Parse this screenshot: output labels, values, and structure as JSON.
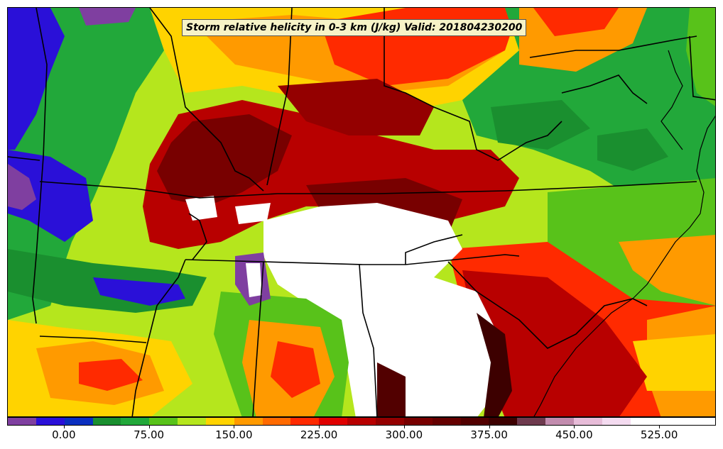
{
  "map": {
    "title": "Storm relative helicity in 0-3 km (J/kg) Valid: 201804230200"
  },
  "colorbar": {
    "colors": [
      "#7f3fa0",
      "#2a10d8",
      "#0a2fbf",
      "#1a8f2f",
      "#22a83a",
      "#58c21a",
      "#b5e61d",
      "#ffd300",
      "#ff9a00",
      "#ff6a00",
      "#ff2a00",
      "#e00000",
      "#b80000",
      "#940000",
      "#780000",
      "#650000",
      "#520000",
      "#3d0000",
      "#6e3a4e",
      "#c28cae",
      "#e7bcd8",
      "#f4dbf0",
      "#ffffff",
      "#ffffff",
      "#ffffff"
    ],
    "tick_labels": [
      "0.00",
      "75.00",
      "150.00",
      "225.00",
      "300.00",
      "375.00",
      "450.00",
      "525.00"
    ],
    "tick_values": [
      0,
      75,
      150,
      225,
      300,
      375,
      450,
      525
    ],
    "min": -50,
    "max": 575
  }
}
